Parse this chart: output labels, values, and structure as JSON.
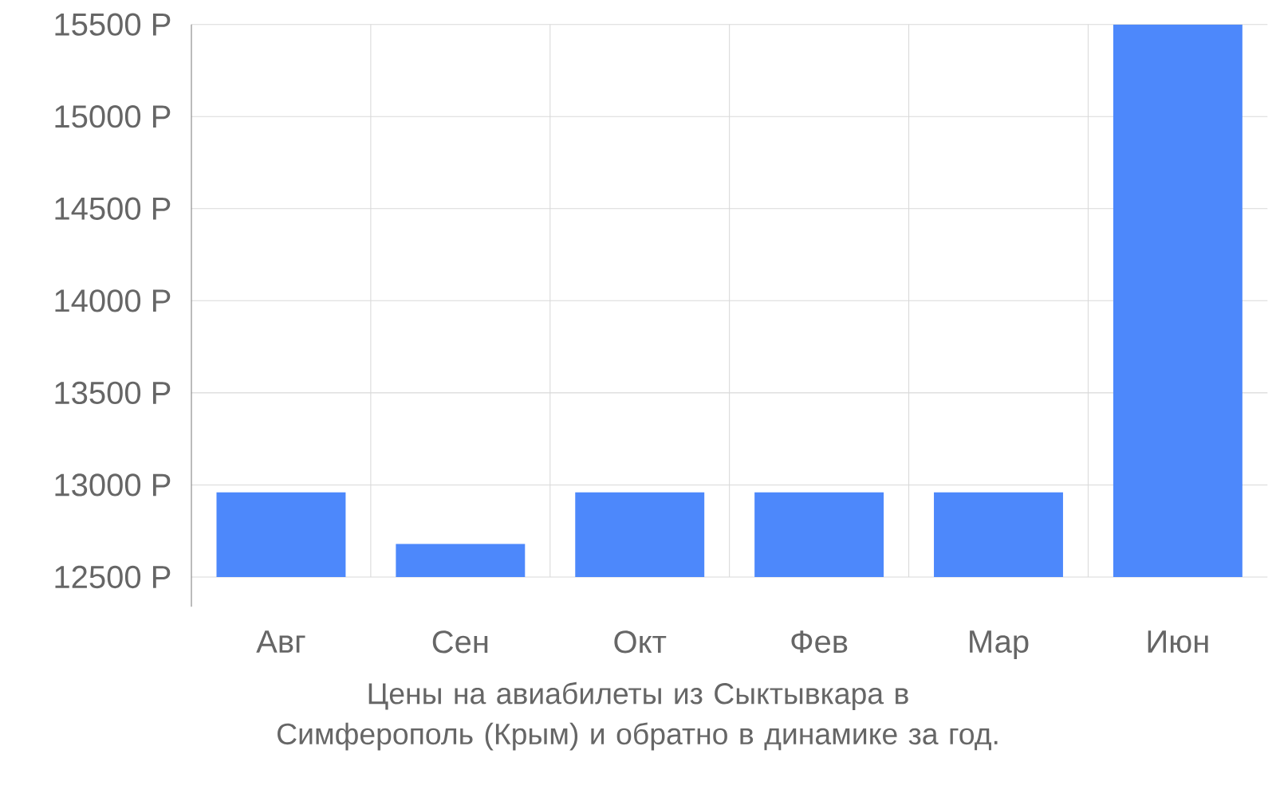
{
  "chart_data": {
    "type": "bar",
    "title": "Цены на авиабилеты из Сыктывкара в Симферополь (Крым) и обратно в динамике за год.",
    "categories": [
      "Авг",
      "Сен",
      "Окт",
      "Фев",
      "Мар",
      "Июн"
    ],
    "values": [
      12960,
      12680,
      12960,
      12960,
      12960,
      15500
    ],
    "color": "#4d88fb",
    "ylim": [
      12500,
      15500
    ],
    "yticks": [
      {
        "value": 12500,
        "label": "12500 Р"
      },
      {
        "value": 13000,
        "label": "13000 Р"
      },
      {
        "value": 13500,
        "label": "13500 Р"
      },
      {
        "value": 14000,
        "label": "14000 Р"
      },
      {
        "value": 14500,
        "label": "14500 Р"
      },
      {
        "value": 15000,
        "label": "15000 Р"
      },
      {
        "value": 15500,
        "label": "15500 Р"
      }
    ],
    "grid": true
  }
}
